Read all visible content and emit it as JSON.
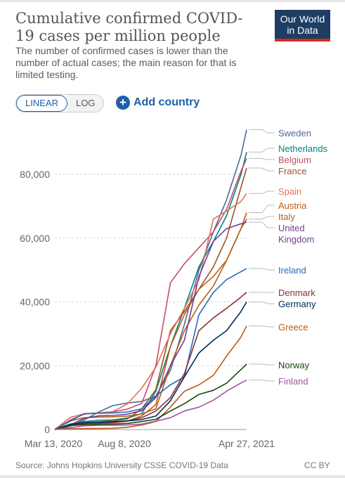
{
  "header": {
    "title": "Cumulative confirmed COVID-19 cases per million people",
    "subtitle": "The number of confirmed cases is lower than the number of actual cases; the main reason for that is limited testing.",
    "logo_line1": "Our World",
    "logo_line2": "in Data"
  },
  "controls": {
    "linear_label": "LINEAR",
    "log_label": "LOG",
    "add_country_label": "Add country",
    "active_scale": "linear"
  },
  "footer": {
    "source": "Source: Johns Hopkins University CSSE COVID-19 Data",
    "license": "CC BY"
  },
  "colors": {
    "title": "#555555",
    "accent": "#1d5fa8",
    "logo_bg": "#1d3d63",
    "logo_bar": "#d42b21"
  },
  "chart_data": {
    "type": "line",
    "title": "Cumulative confirmed COVID-19 cases per million people",
    "x_tick_labels": [
      "Mar 13, 2020",
      "Aug 8, 2020",
      "Apr 27, 2021"
    ],
    "x_range": [
      "2020-03-13",
      "2021-04-27"
    ],
    "y_tick_labels": [
      "0",
      "20,000",
      "40,000",
      "60,000",
      "80,000"
    ],
    "y_ticks": [
      0,
      20000,
      40000,
      60000,
      80000
    ],
    "ylim": [
      0,
      95000
    ],
    "grid": "horizontal dashed",
    "legend": "right, labels at line ends",
    "series": [
      {
        "name": "Sweden",
        "color": "#4c6a9c",
        "x": [
          "2020-03-13",
          "2020-04-15",
          "2020-05-15",
          "2020-06-15",
          "2020-07-15",
          "2020-08-15",
          "2020-09-15",
          "2020-10-15",
          "2020-11-15",
          "2020-12-15",
          "2021-01-15",
          "2021-02-15",
          "2021-03-15",
          "2021-04-15",
          "2021-04-27"
        ],
        "y": [
          0,
          1100,
          3000,
          5500,
          7500,
          8300,
          8800,
          10500,
          18500,
          33000,
          50000,
          62000,
          72000,
          86000,
          94000
        ]
      },
      {
        "name": "Netherlands",
        "color": "#00847e",
        "x": [
          "2020-03-13",
          "2020-04-15",
          "2020-05-15",
          "2020-06-15",
          "2020-07-15",
          "2020-08-15",
          "2020-09-15",
          "2020-10-15",
          "2020-11-15",
          "2020-12-15",
          "2021-01-15",
          "2021-02-15",
          "2021-03-15",
          "2021-04-15",
          "2021-04-27"
        ],
        "y": [
          0,
          1700,
          2500,
          2900,
          3000,
          3600,
          5000,
          12000,
          26000,
          38000,
          51000,
          59000,
          67000,
          80000,
          87000
        ]
      },
      {
        "name": "Belgium",
        "color": "#c15065",
        "x": [
          "2020-03-13",
          "2020-04-15",
          "2020-05-15",
          "2020-06-15",
          "2020-07-15",
          "2020-08-15",
          "2020-09-15",
          "2020-10-15",
          "2020-11-15",
          "2020-12-15",
          "2021-01-15",
          "2021-02-15",
          "2021-03-15",
          "2021-04-15",
          "2021-04-27"
        ],
        "y": [
          0,
          3000,
          4800,
          5200,
          5500,
          6400,
          8200,
          20000,
          46000,
          52000,
          57000,
          62000,
          69000,
          81000,
          85000
        ]
      },
      {
        "name": "France",
        "color": "#9a5129",
        "x": [
          "2020-03-13",
          "2020-04-15",
          "2020-05-15",
          "2020-06-15",
          "2020-07-15",
          "2020-08-15",
          "2020-09-15",
          "2020-10-15",
          "2020-11-15",
          "2020-12-15",
          "2021-01-15",
          "2021-02-15",
          "2021-03-15",
          "2021-04-15",
          "2021-04-27"
        ],
        "y": [
          0,
          1500,
          2200,
          2400,
          2700,
          3300,
          6500,
          12500,
          31000,
          37000,
          44000,
          51000,
          60000,
          76000,
          82000
        ]
      },
      {
        "name": "Spain",
        "color": "#e56e5a",
        "x": [
          "2020-03-13",
          "2020-04-15",
          "2020-05-15",
          "2020-06-15",
          "2020-07-15",
          "2020-08-15",
          "2020-09-15",
          "2020-10-15",
          "2020-11-15",
          "2020-12-15",
          "2021-01-15",
          "2021-02-15",
          "2021-03-15",
          "2021-04-15",
          "2021-04-27"
        ],
        "y": [
          0,
          3800,
          4900,
          5200,
          5600,
          8000,
          13000,
          19500,
          30000,
          38000,
          47000,
          66000,
          68500,
          71500,
          74000
        ]
      },
      {
        "name": "Austria",
        "color": "#c05917",
        "x": [
          "2020-03-13",
          "2020-04-15",
          "2020-05-15",
          "2020-06-15",
          "2020-07-15",
          "2020-08-15",
          "2020-09-15",
          "2020-10-15",
          "2020-11-15",
          "2020-12-15",
          "2021-01-15",
          "2021-02-15",
          "2021-03-15",
          "2021-04-15",
          "2021-04-27"
        ],
        "y": [
          0,
          1600,
          1800,
          1900,
          2100,
          2600,
          4300,
          7800,
          26000,
          36000,
          44000,
          48000,
          53000,
          63000,
          68000
        ]
      },
      {
        "name": "Italy",
        "color": "#b16214",
        "x": [
          "2020-03-13",
          "2020-04-15",
          "2020-05-15",
          "2020-06-15",
          "2020-07-15",
          "2020-08-15",
          "2020-09-15",
          "2020-10-15",
          "2020-11-15",
          "2020-12-15",
          "2021-01-15",
          "2021-02-15",
          "2021-03-15",
          "2021-04-15",
          "2021-04-27"
        ],
        "y": [
          0,
          2700,
          3700,
          3900,
          4000,
          4200,
          4900,
          6500,
          20000,
          31000,
          39000,
          45000,
          53000,
          63000,
          66000
        ]
      },
      {
        "name": "United Kingdom",
        "color": "#6d3e91",
        "x": [
          "2020-03-13",
          "2020-04-15",
          "2020-05-15",
          "2020-06-15",
          "2020-07-15",
          "2020-08-15",
          "2020-09-15",
          "2020-10-15",
          "2020-11-15",
          "2020-12-15",
          "2021-01-15",
          "2021-02-15",
          "2021-03-15",
          "2021-04-15",
          "2021-04-27"
        ],
        "y": [
          0,
          1400,
          3500,
          4300,
          4400,
          4800,
          5900,
          10000,
          20000,
          28000,
          48000,
          59000,
          63000,
          64500,
          65000
        ]
      },
      {
        "name": "Ireland",
        "color": "#286bbb",
        "x": [
          "2020-03-13",
          "2020-04-15",
          "2020-05-15",
          "2020-06-15",
          "2020-07-15",
          "2020-08-15",
          "2020-09-15",
          "2020-10-15",
          "2020-11-15",
          "2020-12-15",
          "2021-01-15",
          "2021-02-15",
          "2021-03-15",
          "2021-04-15",
          "2021-04-27"
        ],
        "y": [
          0,
          2600,
          5000,
          5100,
          5200,
          5500,
          6500,
          10500,
          14000,
          16500,
          36000,
          43000,
          47000,
          49500,
          50500
        ]
      },
      {
        "name": "Denmark",
        "color": "#883039",
        "x": [
          "2020-03-13",
          "2020-04-15",
          "2020-05-15",
          "2020-06-15",
          "2020-07-15",
          "2020-08-15",
          "2020-09-15",
          "2020-10-15",
          "2020-11-15",
          "2020-12-15",
          "2021-01-15",
          "2021-02-15",
          "2021-03-15",
          "2021-04-15",
          "2021-04-27"
        ],
        "y": [
          0,
          1200,
          1900,
          2100,
          2300,
          2700,
          3700,
          5800,
          10000,
          17500,
          31000,
          35000,
          38000,
          41500,
          43000
        ]
      },
      {
        "name": "Germany",
        "color": "#00295b",
        "x": [
          "2020-03-13",
          "2020-04-15",
          "2020-05-15",
          "2020-06-15",
          "2020-07-15",
          "2020-08-15",
          "2020-09-15",
          "2020-10-15",
          "2020-11-15",
          "2020-12-15",
          "2021-01-15",
          "2021-02-15",
          "2021-03-15",
          "2021-04-15",
          "2021-04-27"
        ],
        "y": [
          0,
          1600,
          2100,
          2250,
          2400,
          2700,
          3100,
          4200,
          9000,
          16500,
          24000,
          28000,
          31000,
          37000,
          40000
        ]
      },
      {
        "name": "Greece",
        "color": "#be5915",
        "x": [
          "2020-03-13",
          "2020-04-15",
          "2020-05-15",
          "2020-06-15",
          "2020-07-15",
          "2020-08-15",
          "2020-09-15",
          "2020-10-15",
          "2020-11-15",
          "2020-12-15",
          "2021-01-15",
          "2021-02-15",
          "2021-03-15",
          "2021-04-15",
          "2021-04-27"
        ],
        "y": [
          0,
          200,
          280,
          300,
          380,
          700,
          1400,
          2500,
          7000,
          12000,
          14000,
          17000,
          23000,
          29000,
          32500
        ]
      },
      {
        "name": "Norway",
        "color": "#18470f",
        "x": [
          "2020-03-13",
          "2020-04-15",
          "2020-05-15",
          "2020-06-15",
          "2020-07-15",
          "2020-08-15",
          "2020-09-15",
          "2020-10-15",
          "2020-11-15",
          "2020-12-15",
          "2021-01-15",
          "2021-02-15",
          "2021-03-15",
          "2021-04-15",
          "2021-04-27"
        ],
        "y": [
          0,
          1250,
          1500,
          1600,
          1700,
          1900,
          2500,
          3200,
          5800,
          8100,
          11000,
          12300,
          14500,
          18800,
          20500
        ]
      },
      {
        "name": "Finland",
        "color": "#a2559c",
        "x": [
          "2020-03-13",
          "2020-04-15",
          "2020-05-15",
          "2020-06-15",
          "2020-07-15",
          "2020-08-15",
          "2020-09-15",
          "2020-10-15",
          "2020-11-15",
          "2020-12-15",
          "2021-01-15",
          "2021-02-15",
          "2021-03-15",
          "2021-04-15",
          "2021-04-27"
        ],
        "y": [
          0,
          600,
          1150,
          1300,
          1350,
          1400,
          1700,
          2600,
          3700,
          5800,
          7000,
          9200,
          12000,
          14600,
          15500
        ]
      }
    ]
  }
}
